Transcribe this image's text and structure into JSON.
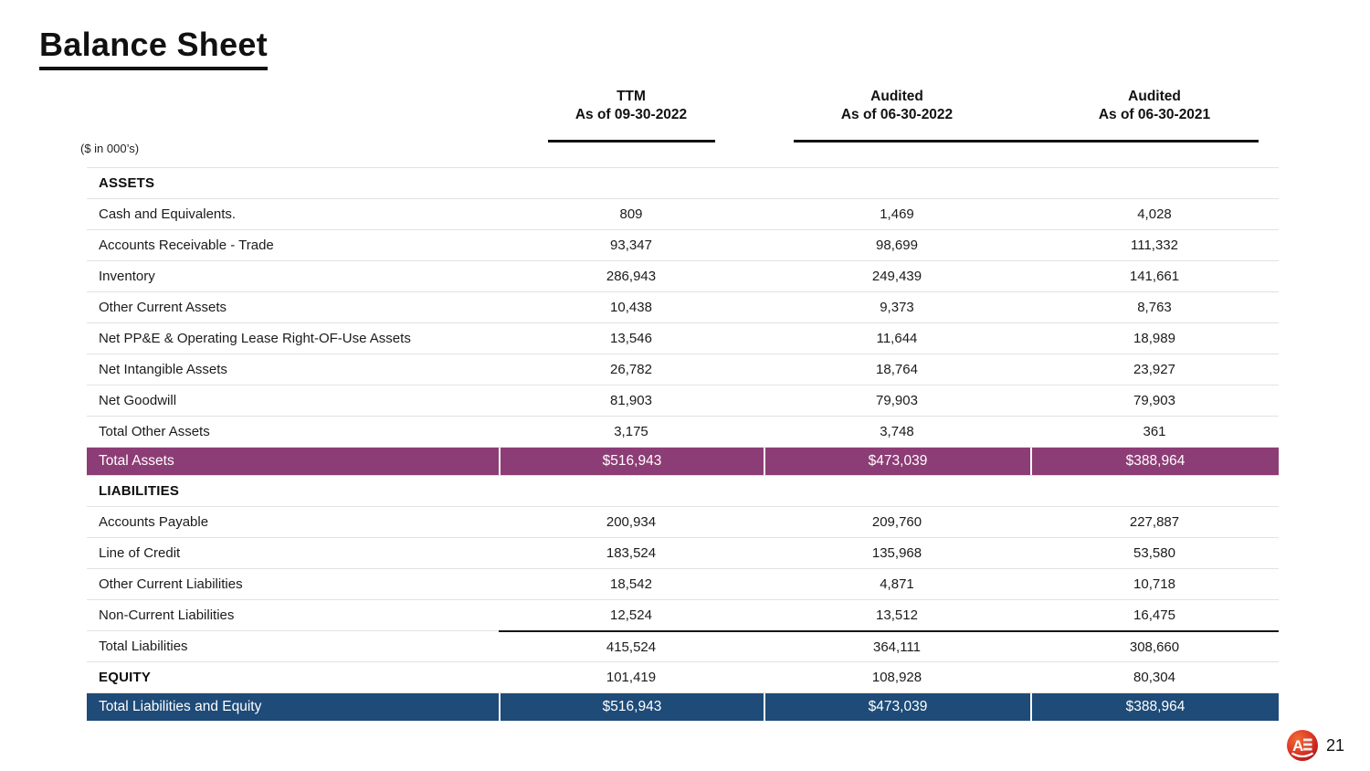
{
  "page": {
    "title": "Balance Sheet",
    "units_note": "($ in 000’s)",
    "page_number": "21"
  },
  "colors": {
    "total_assets_row": "#8d3d75",
    "total_liabilities_equity_row": "#1e4b78",
    "row_divider": "#e2e2e2",
    "logo_red": "#d22b20"
  },
  "table": {
    "columns": [
      {
        "label": "TTM",
        "sublabel": "As of 09-30-2022"
      },
      {
        "label": "Audited",
        "sublabel": "As of 06-30-2022"
      },
      {
        "label": "Audited",
        "sublabel": "As of 06-30-2021"
      }
    ],
    "rows": [
      {
        "type": "section",
        "label": "ASSETS",
        "values": [
          "",
          "",
          ""
        ]
      },
      {
        "type": "data",
        "label": "Cash and Equivalents.",
        "values": [
          "809",
          "1,469",
          "4,028"
        ]
      },
      {
        "type": "data",
        "label": "Accounts Receivable - Trade",
        "values": [
          "93,347",
          "98,699",
          "111,332"
        ]
      },
      {
        "type": "data",
        "label": "Inventory",
        "values": [
          "286,943",
          "249,439",
          "141,661"
        ]
      },
      {
        "type": "data",
        "label": "Other Current Assets",
        "values": [
          "10,438",
          "9,373",
          "8,763"
        ]
      },
      {
        "type": "data",
        "label": "Net PP&E & Operating Lease Right-OF-Use Assets",
        "values": [
          "13,546",
          "11,644",
          "18,989"
        ]
      },
      {
        "type": "data",
        "label": "Net Intangible Assets",
        "values": [
          "26,782",
          "18,764",
          "23,927"
        ]
      },
      {
        "type": "data",
        "label": "Net Goodwill",
        "values": [
          "81,903",
          "79,903",
          "79,903"
        ]
      },
      {
        "type": "data",
        "label": "Total Other Assets",
        "values": [
          "3,175",
          "3,748",
          "361"
        ]
      },
      {
        "type": "total",
        "style": "purple",
        "label": "Total Assets",
        "values": [
          "$516,943",
          "$473,039",
          "$388,964"
        ]
      },
      {
        "type": "section",
        "label": "LIABILITIES",
        "values": [
          "",
          "",
          ""
        ]
      },
      {
        "type": "data",
        "label": "Accounts Payable",
        "values": [
          "200,934",
          "209,760",
          "227,887"
        ]
      },
      {
        "type": "data",
        "label": "Line of Credit",
        "values": [
          "183,524",
          "135,968",
          "53,580"
        ]
      },
      {
        "type": "data",
        "label": "Other Current Liabilities",
        "values": [
          "18,542",
          "4,871",
          "10,718"
        ]
      },
      {
        "type": "data",
        "label": "Non-Current Liabilities",
        "values": [
          "12,524",
          "13,512",
          "16,475"
        ]
      },
      {
        "type": "data",
        "rule_above": true,
        "label": "Total Liabilities",
        "values": [
          "415,524",
          "364,111",
          "308,660"
        ]
      },
      {
        "type": "section",
        "label": "EQUITY",
        "values": [
          "101,419",
          "108,928",
          "80,304"
        ]
      },
      {
        "type": "total",
        "style": "blue",
        "label": "Total Liabilities and Equity",
        "values": [
          "$516,943",
          "$473,039",
          "$388,964"
        ]
      }
    ]
  }
}
